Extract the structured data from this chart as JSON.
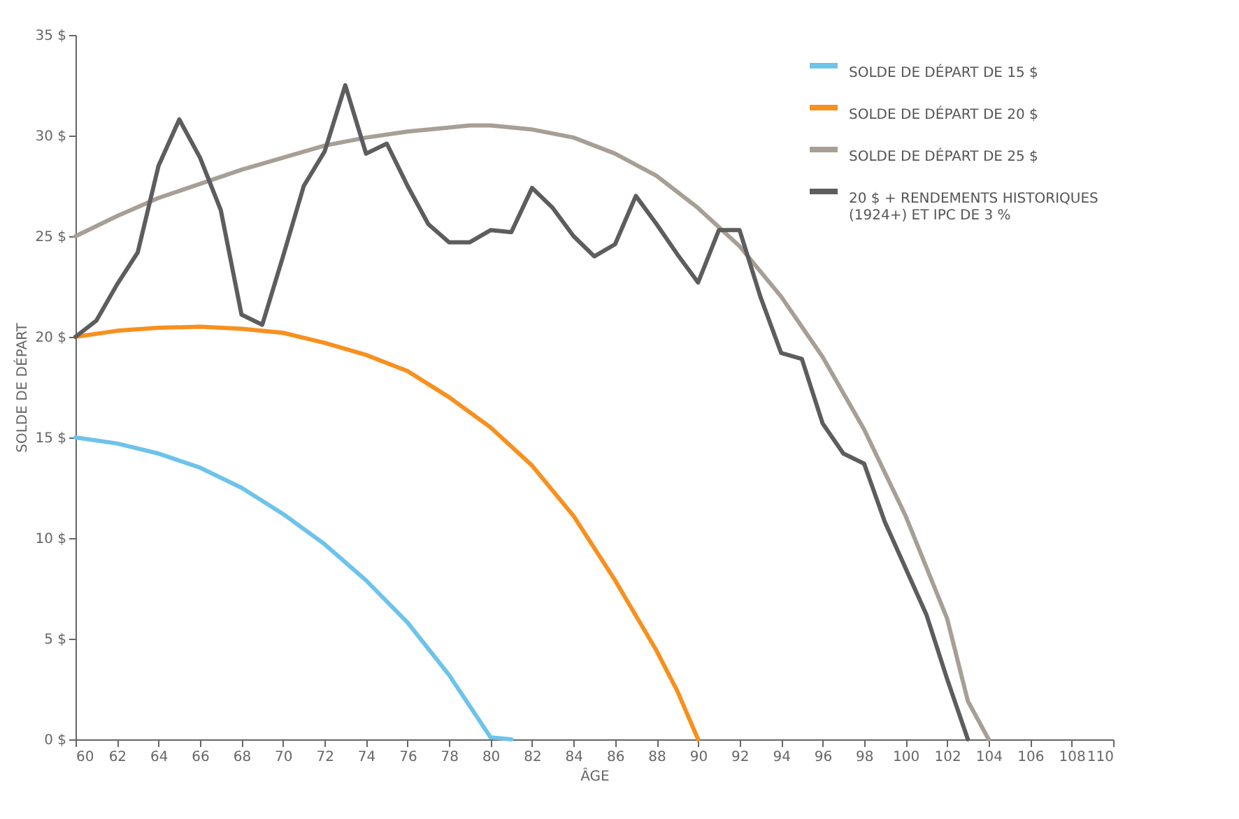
{
  "chart_data": {
    "type": "line",
    "xlabel": "ÂGE",
    "ylabel": "SOLDE DE DÉPART",
    "xlim": [
      60,
      110
    ],
    "xticks": [
      60,
      62,
      64,
      66,
      68,
      70,
      72,
      74,
      76,
      78,
      80,
      82,
      84,
      86,
      88,
      90,
      92,
      94,
      96,
      98,
      100,
      102,
      104,
      106,
      108,
      110
    ],
    "ylim": [
      0,
      35
    ],
    "yticks": [
      {
        "value": 0,
        "label": "0 $"
      },
      {
        "value": 5,
        "label": "5 $"
      },
      {
        "value": 10,
        "label": "10 $"
      },
      {
        "value": 15,
        "label": "15 $"
      },
      {
        "value": 20,
        "label": "20 $"
      },
      {
        "value": 25,
        "label": "25 $"
      },
      {
        "value": 30,
        "label": "30 $"
      },
      {
        "value": 35,
        "label": "35 $"
      }
    ],
    "grid": false,
    "legend": "top right",
    "marker": "none",
    "line_style": "solid",
    "series": [
      {
        "name": "SOLDE DE DÉPART DE 15 $",
        "color": "#6dc3ea",
        "x": [
          60,
          62,
          64,
          66,
          68,
          70,
          72,
          74,
          76,
          78,
          80,
          81
        ],
        "values": [
          15.0,
          14.7,
          14.2,
          13.5,
          12.5,
          11.2,
          9.7,
          7.9,
          5.8,
          3.2,
          0.1,
          0
        ]
      },
      {
        "name": "SOLDE DE DÉPART DE 20 $",
        "color": "#f7901e",
        "x": [
          60,
          62,
          64,
          66,
          68,
          70,
          72,
          74,
          76,
          78,
          80,
          82,
          84,
          86,
          88,
          89,
          90
        ],
        "values": [
          20.0,
          20.3,
          20.45,
          20.5,
          20.4,
          20.2,
          19.7,
          19.1,
          18.3,
          17.0,
          15.5,
          13.6,
          11.1,
          7.9,
          4.4,
          2.4,
          0
        ]
      },
      {
        "name": "SOLDE DE DÉPART DE 25 $",
        "color": "#a79f95",
        "x": [
          60,
          62,
          64,
          66,
          68,
          70,
          72,
          74,
          76,
          78,
          79,
          80,
          82,
          84,
          86,
          88,
          90,
          92,
          94,
          96,
          98,
          100,
          102,
          103,
          104
        ],
        "values": [
          25.0,
          26.0,
          26.9,
          27.6,
          28.3,
          28.9,
          29.5,
          29.9,
          30.2,
          30.4,
          30.5,
          30.5,
          30.3,
          29.9,
          29.1,
          28.0,
          26.4,
          24.5,
          22.0,
          19.0,
          15.4,
          11.1,
          6.0,
          1.9,
          0
        ]
      },
      {
        "name": "20 $ + RENDEMENTS HISTORIQUES (1924+) ET IPC DE 3 %",
        "color": "#5d5d5f",
        "x": [
          60,
          61,
          62,
          63,
          64,
          65,
          66,
          67,
          68,
          69,
          70,
          71,
          72,
          73,
          74,
          75,
          76,
          77,
          78,
          79,
          80,
          81,
          82,
          83,
          84,
          85,
          86,
          87,
          88,
          89,
          90,
          91,
          92,
          93,
          94,
          95,
          96,
          97,
          98,
          99,
          100,
          101,
          102,
          103
        ],
        "values": [
          20.0,
          20.8,
          22.6,
          24.2,
          28.5,
          30.8,
          28.9,
          26.3,
          21.1,
          20.6,
          24.0,
          27.5,
          29.2,
          32.5,
          29.1,
          29.6,
          27.5,
          25.6,
          24.7,
          24.7,
          25.3,
          25.2,
          27.4,
          26.4,
          25.0,
          24.0,
          24.6,
          27.0,
          25.6,
          24.1,
          22.7,
          25.3,
          25.3,
          22.0,
          19.2,
          18.9,
          15.7,
          14.2,
          13.7,
          10.8,
          8.5,
          6.2,
          3.0,
          0
        ]
      }
    ]
  }
}
